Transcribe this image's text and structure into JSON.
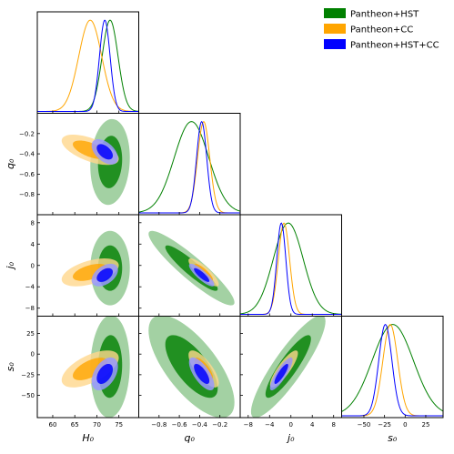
{
  "chart_data": {
    "type": "triangle",
    "series": [
      {
        "name": "Pantheon+HST",
        "color": "#008000",
        "marginals": {
          "H0": {
            "mean": 73.0,
            "sd": 1.8
          },
          "q0": {
            "mean": -0.48,
            "sd": 0.17
          },
          "j0": {
            "mean": -0.5,
            "sd": 2.8
          },
          "s0": {
            "mean": -15,
            "sd": 25
          }
        },
        "corr": {
          "H0_q0": 0.1,
          "H0_j0": 0.0,
          "H0_s0": 0.05,
          "q0_j0": -0.92,
          "q0_s0": -0.7,
          "j0_s0": 0.88
        }
      },
      {
        "name": "Pantheon+CC",
        "color": "#FFA500",
        "marginals": {
          "H0": {
            "mean": 68.5,
            "sd": 2.6
          },
          "q0": {
            "mean": -0.36,
            "sd": 0.06
          },
          "j0": {
            "mean": -1.3,
            "sd": 1.05
          },
          "s0": {
            "mean": -18,
            "sd": 9
          }
        },
        "corr": {
          "H0_q0": -0.6,
          "H0_j0": 0.5,
          "H0_s0": 0.6,
          "q0_j0": -0.85,
          "q0_s0": -0.75,
          "j0_s0": 0.85
        }
      },
      {
        "name": "Pantheon+HST+CC",
        "color": "#0000FF",
        "marginals": {
          "H0": {
            "mean": 71.8,
            "sd": 1.2
          },
          "q0": {
            "mean": -0.38,
            "sd": 0.05
          },
          "j0": {
            "mean": -1.8,
            "sd": 0.85
          },
          "s0": {
            "mean": -24,
            "sd": 8
          }
        },
        "corr": {
          "H0_q0": -0.5,
          "H0_j0": 0.45,
          "H0_s0": 0.45,
          "q0_j0": -0.85,
          "q0_s0": -0.7,
          "j0_s0": 0.85
        }
      }
    ],
    "parameters": [
      {
        "key": "H0",
        "label": "H₀",
        "range": [
          56.5,
          79.5
        ],
        "ticks": [
          60,
          65,
          70,
          75
        ],
        "tick_labels": [
          "60",
          "65",
          "70",
          "75"
        ]
      },
      {
        "key": "q0",
        "label": "q₀",
        "range": [
          -1.0,
          0.0
        ],
        "ticks": [
          -0.8,
          -0.6,
          -0.4,
          -0.2
        ],
        "tick_labels": [
          "−0.8",
          "−0.6",
          "−0.4",
          "−0.2"
        ]
      },
      {
        "key": "j0",
        "label": "j₀",
        "range": [
          -9.5,
          9.5
        ],
        "ticks": [
          -8,
          -4,
          0,
          4,
          8
        ],
        "tick_labels": [
          "−8",
          "−4",
          "0",
          "4",
          "8"
        ]
      },
      {
        "key": "s0",
        "label": "s₀",
        "range": [
          -77,
          46
        ],
        "ticks": [
          -50,
          -25,
          0,
          25
        ],
        "tick_labels": [
          "−50",
          "−25",
          "0",
          "25"
        ]
      }
    ],
    "y_axes": [
      {
        "key": "q0",
        "label": "q₀",
        "ticks": [
          -0.2,
          -0.4,
          -0.6,
          -0.8
        ],
        "tick_labels": [
          "−0.2",
          "−0.4",
          "−0.6",
          "−0.8"
        ]
      },
      {
        "key": "j0",
        "label": "j₀",
        "ticks": [
          8,
          4,
          0,
          -4,
          -8
        ],
        "tick_labels": [
          "8",
          "4",
          "0",
          "−4",
          "−8"
        ]
      },
      {
        "key": "s0",
        "label": "s₀",
        "ticks": [
          25,
          0,
          -25,
          -50
        ],
        "tick_labels": [
          "25",
          "0",
          "−25",
          "−50"
        ]
      }
    ],
    "contour_levels": [
      "1σ",
      "2σ"
    ],
    "legend": {
      "position": "top-right",
      "entries": [
        "Pantheon+HST",
        "Pantheon+CC",
        "Pantheon+HST+CC"
      ]
    }
  }
}
